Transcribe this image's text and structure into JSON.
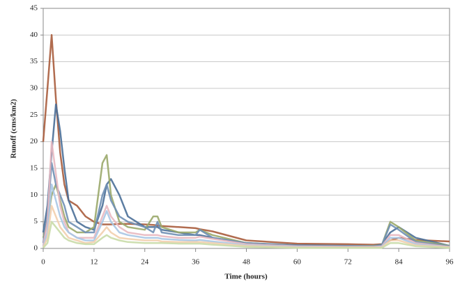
{
  "chart_data": {
    "type": "line",
    "x_label": "Time (hours)",
    "y_label": "Runoff (cms/km2)",
    "x": [
      0,
      1,
      2,
      3,
      4,
      5,
      6,
      8,
      10,
      12,
      14,
      15,
      16,
      18,
      20,
      24,
      26,
      27,
      28,
      32,
      36,
      37,
      40,
      48,
      60,
      72,
      78,
      80,
      82,
      84,
      88,
      96
    ],
    "series": [
      {
        "color": "#a85c3c",
        "values": [
          20,
          30,
          40,
          28,
          18,
          12,
          9,
          8,
          6,
          5,
          4.5,
          4.5,
          4.5,
          4.6,
          4.6,
          4.5,
          4.4,
          4.3,
          4.2,
          4,
          3.8,
          3.6,
          3.2,
          1.5,
          0.9,
          0.8,
          0.7,
          0.8,
          1.5,
          2,
          1.6,
          1.3
        ]
      },
      {
        "color": "#4a6f98",
        "values": [
          3,
          8,
          18,
          27,
          22,
          15,
          9,
          5,
          4,
          3.5,
          8,
          12,
          13,
          10,
          6,
          4,
          4,
          4,
          3.5,
          3,
          2.5,
          2.5,
          2,
          1,
          0.6,
          0.5,
          0.5,
          0.7,
          3,
          4,
          2,
          0.5
        ]
      },
      {
        "color": "#9aa86a",
        "values": [
          2,
          5,
          10,
          12,
          9,
          6,
          4,
          3,
          3,
          4,
          16,
          17.5,
          10,
          5,
          4,
          3.5,
          6,
          6,
          4,
          3,
          3,
          3.5,
          2.5,
          1,
          0.5,
          0.5,
          0.5,
          0.6,
          5,
          4,
          1.5,
          0.5
        ]
      },
      {
        "color": "#6f8fb4",
        "values": [
          1,
          6,
          16,
          12,
          10,
          8,
          5,
          4,
          3,
          3,
          10,
          12,
          9,
          6,
          5,
          4,
          3,
          5,
          3,
          2.5,
          2.5,
          3.5,
          2,
          1,
          0.5,
          0.5,
          0.4,
          0.6,
          4.5,
          3.5,
          1.2,
          0.4
        ]
      },
      {
        "color": "#e8b8c0",
        "values": [
          0.5,
          5,
          20,
          14,
          8,
          5,
          3,
          2,
          2,
          2,
          6,
          8,
          6,
          4,
          3,
          2.5,
          2.5,
          2.5,
          2.3,
          2,
          2,
          2.2,
          1.8,
          0.8,
          0.4,
          0.3,
          0.3,
          0.4,
          2.5,
          2.5,
          1,
          0.3
        ]
      },
      {
        "color": "#a9c6e4",
        "values": [
          0.3,
          3,
          12,
          9,
          6,
          4,
          3,
          2,
          1.5,
          1.5,
          5,
          7,
          5,
          3,
          2.5,
          2,
          2,
          2,
          1.8,
          1.6,
          1.5,
          1.6,
          1.3,
          0.6,
          0.3,
          0.2,
          0.2,
          0.3,
          2,
          2,
          0.8,
          0.2
        ]
      },
      {
        "color": "#f2cfae",
        "values": [
          0.2,
          2,
          8,
          6,
          4,
          3,
          2,
          1.5,
          1,
          1.2,
          3,
          4,
          3,
          2,
          1.8,
          1.5,
          1.5,
          1.5,
          1.3,
          1.2,
          1.2,
          1.2,
          1,
          0.5,
          0.2,
          0.2,
          0.2,
          0.2,
          1.5,
          1.5,
          0.6,
          0.2
        ]
      },
      {
        "color": "#c9dca8",
        "values": [
          0.1,
          1,
          5,
          4,
          3,
          2,
          1.5,
          1,
          0.8,
          0.8,
          2,
          2.5,
          2,
          1.5,
          1.2,
          1,
          1,
          1,
          1,
          0.9,
          0.9,
          0.9,
          0.7,
          0.3,
          0.1,
          0.1,
          0.1,
          0.1,
          1,
          1,
          0.4,
          0.1
        ]
      }
    ],
    "xlim": [
      0,
      96
    ],
    "xticks": [
      0,
      12,
      24,
      36,
      48,
      60,
      72,
      84,
      96
    ],
    "ylim": [
      0,
      45
    ],
    "yticks": [
      0,
      5,
      10,
      15,
      20,
      25,
      30,
      35,
      40,
      45
    ],
    "grid": true
  }
}
